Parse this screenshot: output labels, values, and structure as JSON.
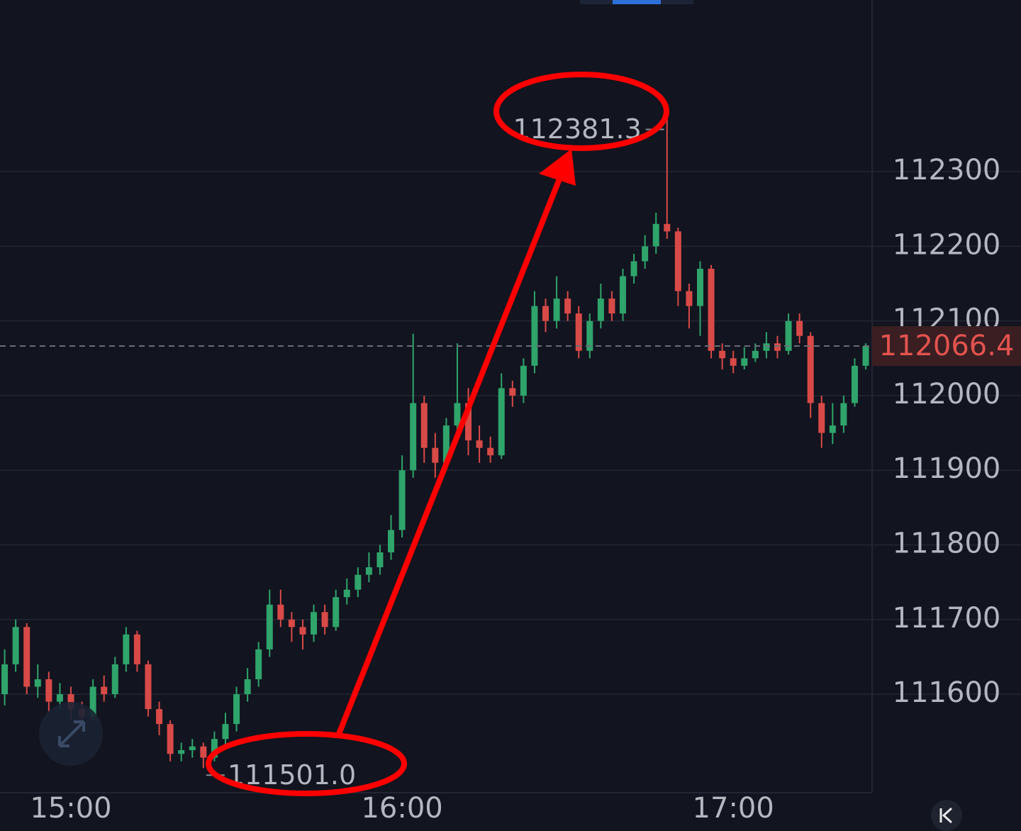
{
  "chart_data": {
    "type": "candlestick",
    "categories": [
      null,
      null,
      null,
      null,
      null,
      null,
      "15:00",
      null,
      null,
      null,
      null,
      null,
      null,
      null,
      null,
      null,
      null,
      null,
      null,
      null,
      null,
      null,
      null,
      null,
      null,
      null,
      null,
      null,
      null,
      null,
      null,
      null,
      null,
      null,
      null,
      null,
      "16:00",
      null,
      null,
      null,
      null,
      null,
      null,
      null,
      null,
      null,
      null,
      null,
      null,
      null,
      null,
      null,
      null,
      null,
      null,
      null,
      null,
      null,
      null,
      null,
      null,
      null,
      null,
      null,
      null,
      null,
      "17:00",
      null,
      null,
      null,
      null,
      null,
      null,
      null,
      null,
      null,
      null,
      null,
      null
    ],
    "open": [
      111600,
      111640,
      111690,
      111610,
      111620,
      111590,
      111600,
      111580,
      111570,
      111610,
      111600,
      111640,
      111680,
      111640,
      111580,
      111560,
      111520,
      111525,
      111530,
      111515,
      111540,
      111560,
      111600,
      111620,
      111660,
      111720,
      111700,
      111690,
      111680,
      111710,
      111690,
      111730,
      111740,
      111760,
      111770,
      111790,
      111820,
      111900,
      111990,
      111930,
      111910,
      111960,
      111990,
      111940,
      111930,
      111920,
      112010,
      112000,
      112040,
      112120,
      112100,
      112130,
      112110,
      112060,
      112100,
      112130,
      112110,
      112160,
      112180,
      112200,
      112230,
      112220,
      112140,
      112120,
      112170,
      112060,
      112050,
      112040,
      112050,
      112060,
      112070,
      112060,
      112100,
      112080,
      111990,
      111950,
      111960,
      111990,
      112040
    ],
    "high": [
      111660,
      111700,
      111695,
      111640,
      111630,
      111615,
      111610,
      111590,
      111620,
      111625,
      111650,
      111690,
      111685,
      111645,
      111590,
      111565,
      111535,
      111540,
      111535,
      111550,
      111575,
      111610,
      111635,
      111670,
      111740,
      111740,
      111710,
      111700,
      111720,
      111720,
      111740,
      111755,
      111770,
      111790,
      111800,
      111840,
      111920,
      112083,
      112000,
      111950,
      111970,
      112070,
      112010,
      111960,
      111945,
      112030,
      112020,
      112050,
      112140,
      112130,
      112160,
      112140,
      112120,
      112110,
      112150,
      112140,
      112170,
      112190,
      112215,
      112245,
      112381.3,
      112225,
      112150,
      112180,
      112175,
      112070,
      112060,
      112065,
      112070,
      112085,
      112080,
      112110,
      112110,
      112085,
      112000,
      111990,
      112000,
      112050,
      112070
    ],
    "low": [
      111585,
      111630,
      111600,
      111595,
      111575,
      111580,
      111565,
      111560,
      111565,
      111590,
      111595,
      111630,
      111630,
      111570,
      111545,
      111510,
      111510,
      111515,
      111501,
      111510,
      111530,
      111550,
      111590,
      111610,
      111650,
      111690,
      111670,
      111660,
      111670,
      111680,
      111685,
      111720,
      111730,
      111750,
      111760,
      111780,
      111810,
      111890,
      111910,
      111890,
      111900,
      111950,
      111920,
      111910,
      111910,
      111915,
      111985,
      111990,
      112030,
      112085,
      112090,
      112100,
      112050,
      112050,
      112090,
      112100,
      112100,
      112150,
      112170,
      112190,
      112210,
      112120,
      112090,
      112080,
      112050,
      112035,
      112030,
      112035,
      112045,
      112050,
      112050,
      112055,
      112070,
      111970,
      111930,
      111935,
      111950,
      111985,
      112035
    ],
    "close": [
      111640,
      111690,
      111610,
      111620,
      111590,
      111600,
      111580,
      111570,
      111610,
      111600,
      111640,
      111680,
      111640,
      111580,
      111560,
      111520,
      111525,
      111530,
      111515,
      111540,
      111560,
      111600,
      111620,
      111660,
      111720,
      111700,
      111690,
      111680,
      111710,
      111690,
      111730,
      111740,
      111760,
      111770,
      111790,
      111820,
      111900,
      111990,
      111930,
      111910,
      111960,
      111990,
      111940,
      111930,
      111920,
      112010,
      112000,
      112040,
      112120,
      112100,
      112130,
      112110,
      112060,
      112100,
      112130,
      112110,
      112160,
      112180,
      112200,
      112230,
      112220,
      112140,
      112120,
      112170,
      112060,
      112050,
      112040,
      112050,
      112060,
      112070,
      112060,
      112100,
      112080,
      111990,
      111950,
      111960,
      111990,
      112040,
      112066.4
    ],
    "up_color": "#2fa46b",
    "down_color": "#d84a47",
    "ylim": [
      111468,
      112530
    ],
    "yticks": [
      111600,
      111700,
      111800,
      111900,
      112000,
      112100,
      112200,
      112300
    ],
    "grid": true,
    "last_price": 112066.4,
    "annotations": [
      112381.3,
      {
        "value": 111501,
        "label": "111501.0"
      }
    ]
  }
}
